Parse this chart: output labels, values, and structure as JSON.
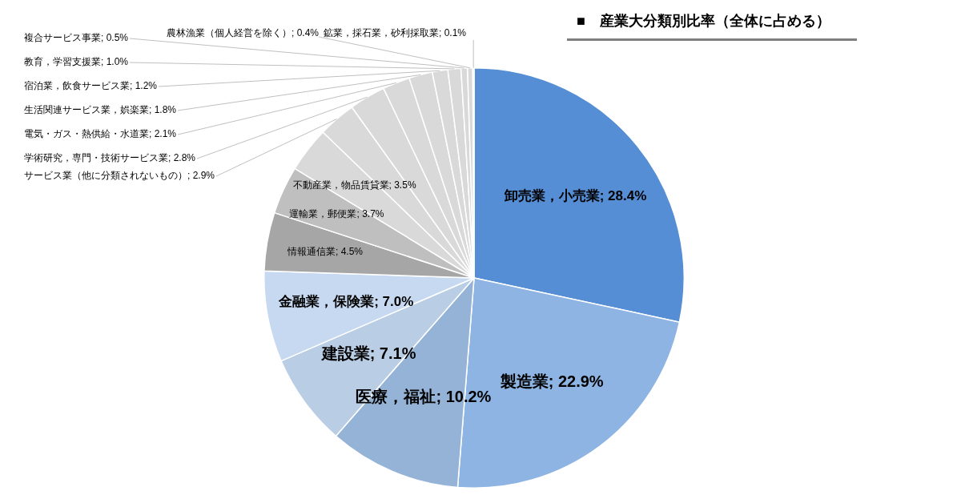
{
  "chart_data": {
    "type": "pie",
    "title": "■　産業大分類別比率（全体に占める）",
    "categories": [
      "卸売業，小売業",
      "製造業",
      "医療，福祉",
      "建設業",
      "金融業，保険業",
      "情報通信業",
      "運輸業，郵便業",
      "不動産業，物品賃貸業",
      "サービス業（他に分類されないもの）",
      "学術研究，専門・技術サービス業",
      "電気・ガス・熱供給・水道業",
      "生活関連サービス業，娯楽業",
      "宿泊業，飲食サービス業",
      "教育，学習支援業",
      "複合サービス事業",
      "農林漁業（個人経営を除く）",
      "鉱業，採石業，砂利採取業"
    ],
    "values": [
      28.4,
      22.9,
      10.2,
      7.1,
      7.0,
      4.5,
      3.7,
      3.5,
      2.9,
      2.8,
      2.1,
      1.8,
      1.2,
      1.0,
      0.5,
      0.4,
      0.1
    ],
    "value_labels": [
      "28.4%",
      "22.9%",
      "10.2%",
      "7.1%",
      "7.0%",
      "4.5%",
      "3.7%",
      "3.5%",
      "2.9%",
      "2.8%",
      "2.1%",
      "1.8%",
      "1.2%",
      "1.0%",
      "0.5%",
      "0.4%",
      "0.1%"
    ],
    "colors": [
      "#558ed5",
      "#8eb4e3",
      "#95b3d7",
      "#b9cde5",
      "#c6d9f1",
      "#a6a6a6",
      "#bfbfbf",
      "#d9d9d9",
      "#d9d9d9",
      "#d9d9d9",
      "#d9d9d9",
      "#d9d9d9",
      "#d9d9d9",
      "#d9d9d9",
      "#d9d9d9",
      "#d9d9d9",
      "#d9d9d9"
    ],
    "legend": false
  }
}
